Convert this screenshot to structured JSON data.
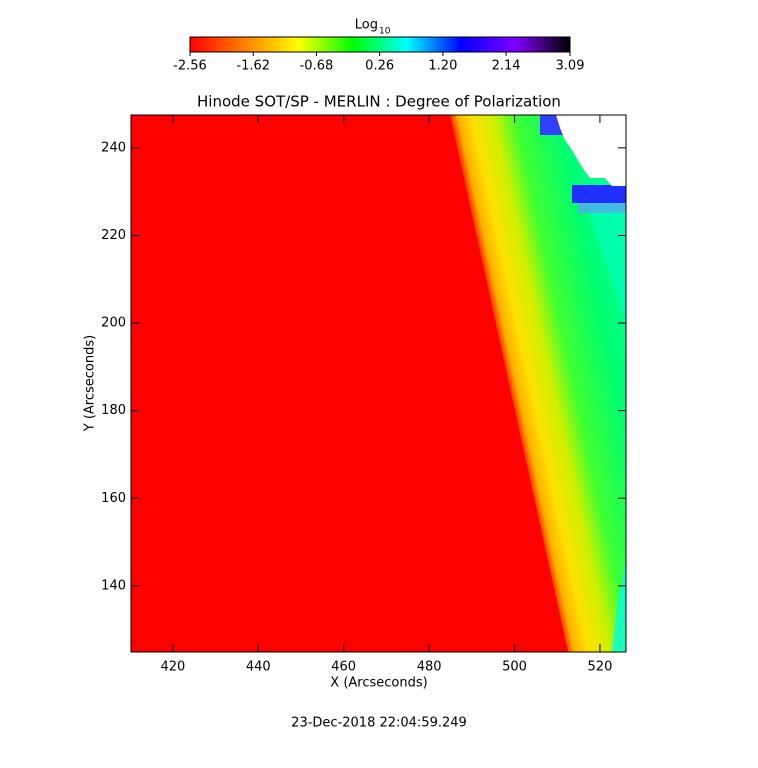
{
  "chart_data": {
    "type": "image",
    "title": "Hinode SOT/SP - MERLIN : Degree of Polarization",
    "x_label": "X (Arcseconds)",
    "y_label": "Y (Arcseconds)",
    "timestamp": "23-Dec-2018 22:04:59.249",
    "xlim": [
      410.2,
      526.1
    ],
    "ylim": [
      124.9,
      247.5
    ],
    "xticks": [
      420,
      440,
      460,
      480,
      500,
      520
    ],
    "yticks": [
      140,
      160,
      180,
      200,
      220,
      240
    ],
    "colorbar": {
      "label_base": "Log",
      "label_subscript": "10",
      "lim": [
        -2.56,
        3.09
      ],
      "ticks": [
        -2.56,
        -1.62,
        -0.68,
        0.26,
        {
          "value": 1.2,
          "label": "1.20"
        },
        2.14,
        3.09
      ],
      "colors": [
        "#ff0000",
        "#ff8000",
        "#ffff00",
        "#00ff00",
        "#00ffff",
        "#0000ff",
        "#8000ff",
        "#000000"
      ]
    }
  }
}
